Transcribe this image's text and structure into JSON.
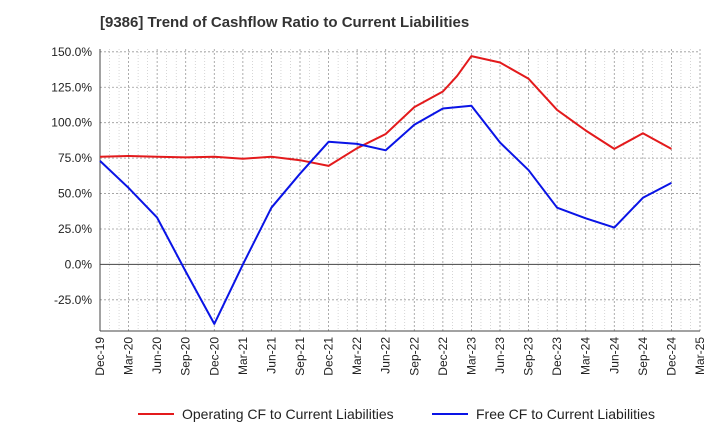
{
  "title": "[9386]  Trend of Cashflow Ratio to Current Liabilities",
  "chart_data": {
    "type": "line",
    "x_labels": [
      "Dec-19",
      "Mar-20",
      "Jun-20",
      "Sep-20",
      "Dec-20",
      "Mar-21",
      "Jun-21",
      "Sep-21",
      "Dec-21",
      "Mar-22",
      "Jun-22",
      "Sep-22",
      "Dec-22",
      "Mar-23",
      "Jun-23",
      "Sep-23",
      "Dec-23",
      "Mar-24",
      "Jun-24",
      "Sep-24",
      "Dec-24",
      "Mar-25"
    ],
    "y_ticks": [
      "150.0%",
      "125.0%",
      "100.0%",
      "75.0%",
      "50.0%",
      "25.0%",
      "0.0%",
      "-25.0%"
    ],
    "ylim": [
      -47,
      152
    ],
    "grid": true,
    "legend_position": "bottom",
    "series": [
      {
        "name": "Operating CF to Current Liabilities",
        "color": "#e31a1c",
        "x_index": [
          0,
          1,
          2,
          3,
          4,
          5,
          6,
          7,
          8,
          9,
          10,
          11,
          12,
          12.5,
          13,
          14,
          15,
          16,
          17,
          18,
          19,
          20
        ],
        "values": [
          76,
          76.5,
          76,
          75.5,
          76,
          74.5,
          76,
          73.5,
          69.5,
          82,
          92,
          111,
          122,
          133,
          147,
          142.5,
          131,
          109,
          94.5,
          81.5,
          92.5,
          81.5
        ]
      },
      {
        "name": "Free CF to Current Liabilities",
        "color": "#0a14e6",
        "x_index": [
          0,
          1,
          2,
          3,
          4,
          5,
          6,
          7,
          8,
          9,
          10,
          11,
          12,
          13,
          14,
          15,
          16,
          17,
          18,
          19,
          20
        ],
        "values": [
          73,
          54,
          33,
          -5,
          -42,
          0,
          40,
          64,
          86.5,
          85,
          80.5,
          98.5,
          110,
          112,
          86,
          66.5,
          40,
          32.5,
          26,
          47,
          57.5
        ]
      }
    ]
  }
}
